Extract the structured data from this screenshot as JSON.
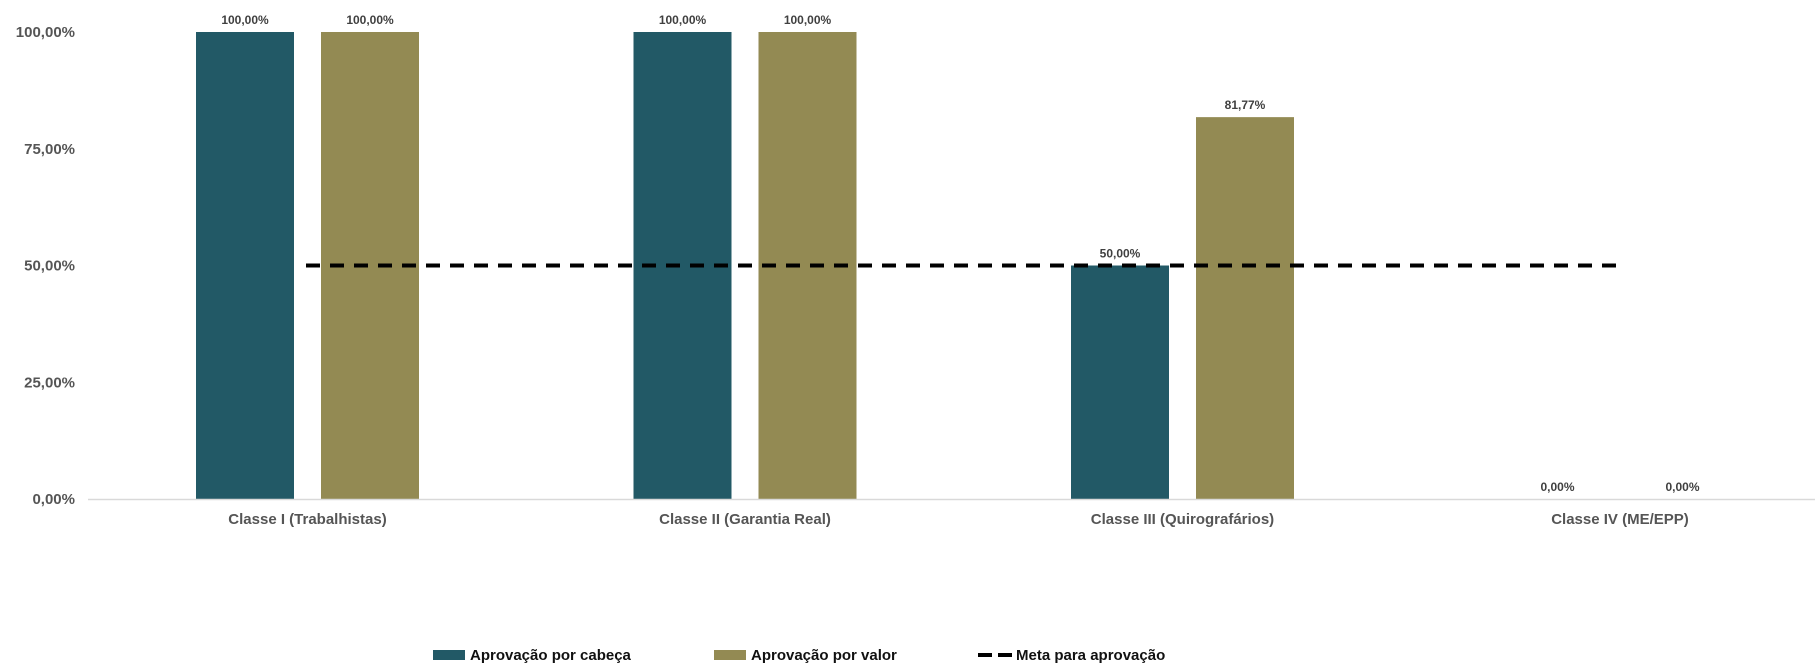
{
  "chart_data": {
    "type": "bar",
    "categories": [
      "Classe I (Trabalhistas)",
      "Classe II (Garantia Real)",
      "Classe III (Quirografários)",
      "Classe IV (ME/EPP)"
    ],
    "series": [
      {
        "name": "Aprovação por cabeça",
        "values": [
          100,
          100,
          50,
          0
        ],
        "color": "#225966",
        "labels": [
          "100,00%",
          "100,00%",
          "50,00%",
          "0,00%"
        ]
      },
      {
        "name": "Aprovação por valor",
        "values": [
          100,
          100,
          81.77,
          0
        ],
        "color": "#938A53",
        "labels": [
          "100,00%",
          "100,00%",
          "81,77%",
          "0,00%"
        ]
      }
    ],
    "reference_line": {
      "name": "Meta para aprovação",
      "value": 50,
      "color": "#000000",
      "style": "dashed"
    },
    "ylim": [
      0,
      100
    ],
    "yticks": [
      0,
      25,
      50,
      75,
      100
    ],
    "ytick_labels": [
      "0,00%",
      "25,00%",
      "50,00%",
      "75,00%",
      "100,00%"
    ],
    "grid": false,
    "legend_position": "bottom"
  }
}
